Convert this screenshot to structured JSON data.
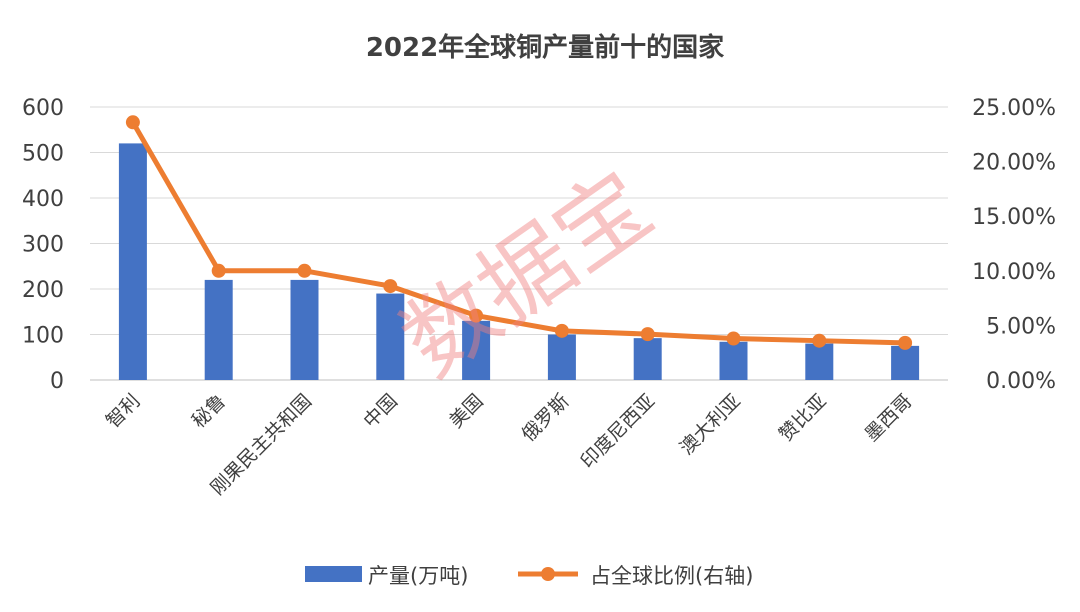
{
  "chart_data": {
    "type": "bar",
    "title": "2022年全球铜产量前十的国家",
    "categories": [
      "智利",
      "秘鲁",
      "刚果民主共和国",
      "中国",
      "美国",
      "俄罗斯",
      "印度尼西亚",
      "澳大利亚",
      "赞比亚",
      "墨西哥"
    ],
    "series": [
      {
        "name": "产量(万吨)",
        "type": "bar",
        "axis": "left",
        "color": "#4472C4",
        "values": [
          520,
          220,
          220,
          190,
          130,
          100,
          92,
          84,
          80,
          75
        ]
      },
      {
        "name": "占全球比例(右轴)",
        "type": "line",
        "axis": "right",
        "color": "#ED7D31",
        "values": [
          23.6,
          10.0,
          10.0,
          8.6,
          5.9,
          4.5,
          4.2,
          3.8,
          3.6,
          3.4
        ]
      }
    ],
    "left_axis": {
      "ylim": [
        0,
        600
      ],
      "ticks": [
        "0",
        "100",
        "200",
        "300",
        "400",
        "500",
        "600"
      ]
    },
    "right_axis": {
      "ylim": [
        0,
        25
      ],
      "ticks": [
        "0.00%",
        "5.00%",
        "10.00%",
        "15.00%",
        "20.00%",
        "25.00%"
      ]
    },
    "grid": true,
    "legend_position": "bottom"
  },
  "watermark": "数据宝"
}
